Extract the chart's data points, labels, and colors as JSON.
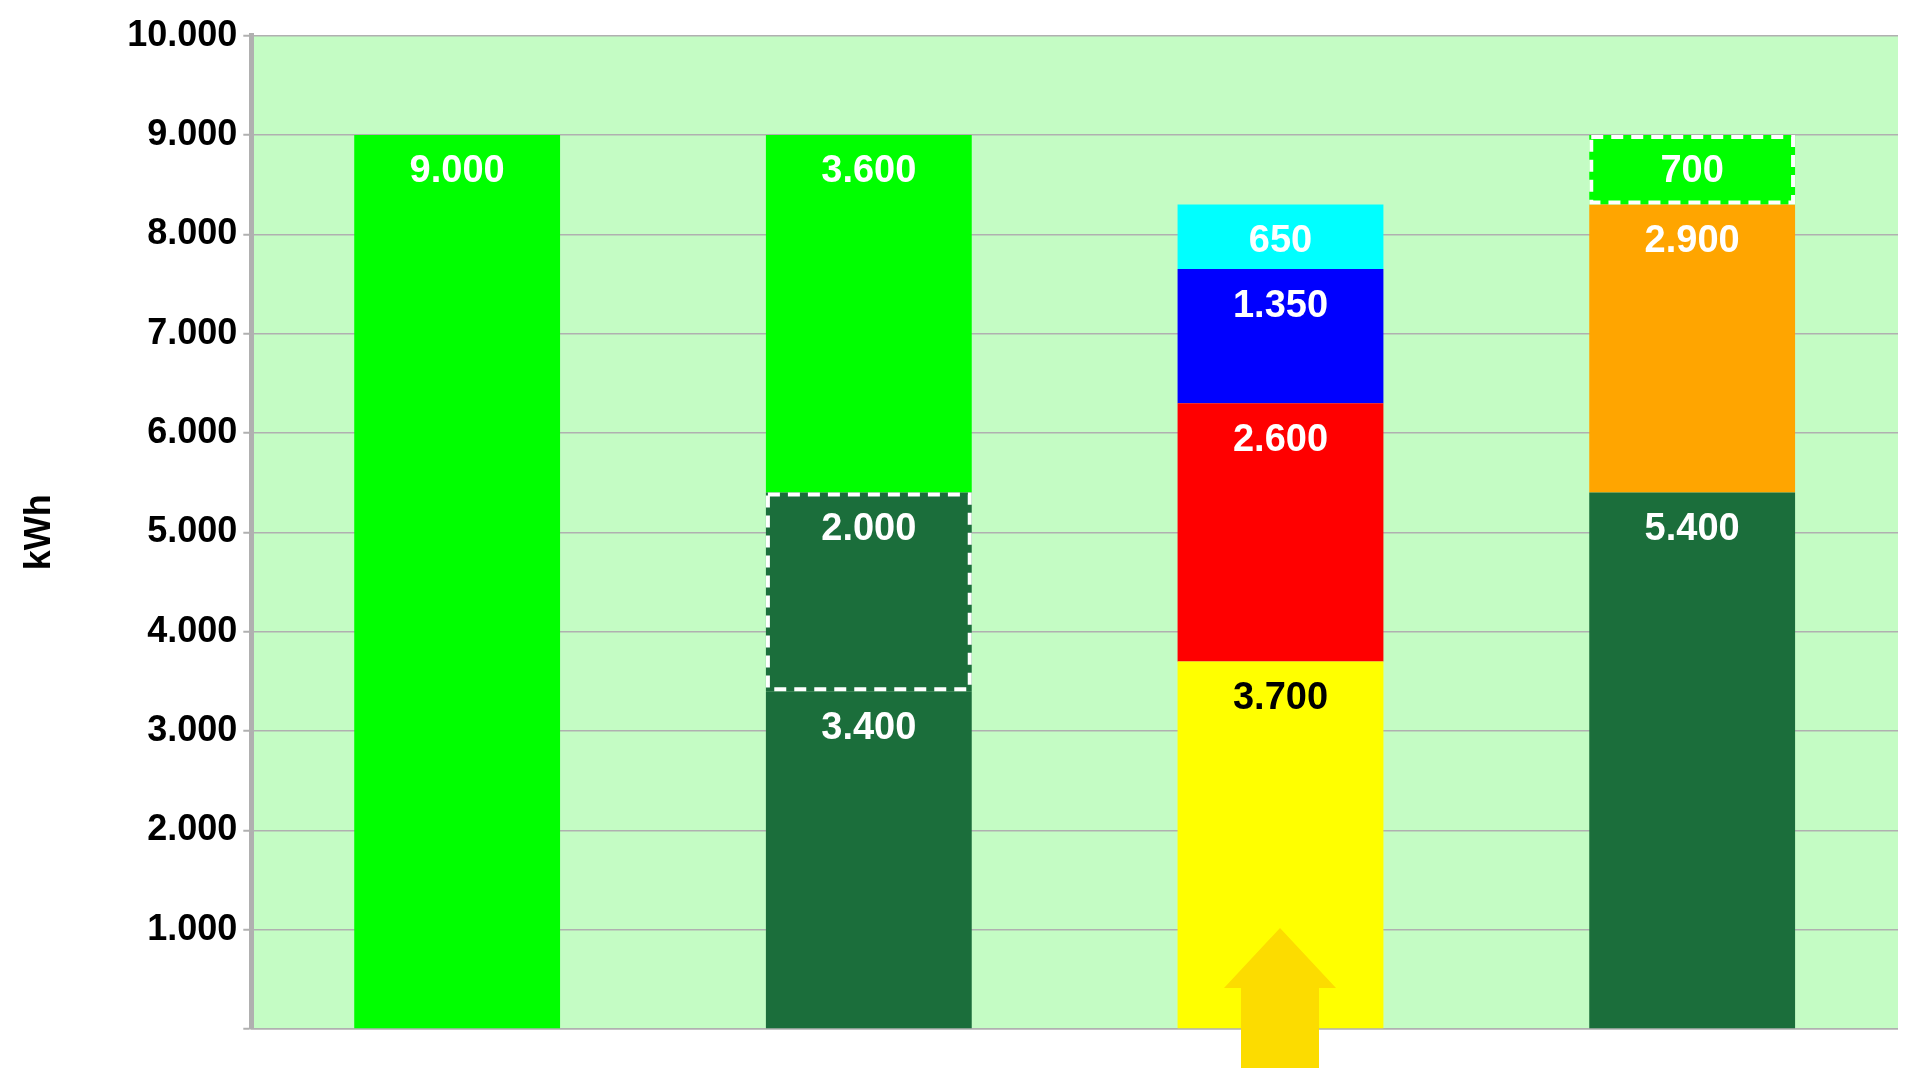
{
  "chart_data": {
    "type": "bar",
    "stacked": true,
    "ylabel": "kWh",
    "categories": [
      null,
      null,
      null,
      null
    ],
    "ylim": [
      0,
      10000
    ],
    "yticks": [
      {
        "value": 0,
        "label": null
      },
      {
        "value": 1000,
        "label": "1.000"
      },
      {
        "value": 2000,
        "label": "2.000"
      },
      {
        "value": 3000,
        "label": "3.000"
      },
      {
        "value": 4000,
        "label": "4.000"
      },
      {
        "value": 5000,
        "label": "5.000"
      },
      {
        "value": 6000,
        "label": "6.000"
      },
      {
        "value": 7000,
        "label": "7.000"
      },
      {
        "value": 8000,
        "label": "8.000"
      },
      {
        "value": 9000,
        "label": "9.000"
      },
      {
        "value": 10000,
        "label": "10.000"
      }
    ],
    "series": [
      {
        "values": [
          9000,
          3400,
          3700,
          5400
        ],
        "colors": [
          "#00ff00",
          "#1b6e3b",
          "#ffff00",
          "#1b6e3b"
        ],
        "value_labels": [
          "9.000",
          "3.400",
          "3.700",
          "5.400"
        ]
      },
      {
        "values": [
          null,
          2000,
          null,
          null
        ],
        "colors": [
          "#1b6e3b",
          "#1b6e3b",
          "#1b6e3b",
          "#1b6e3b"
        ],
        "value_labels": [
          null,
          "2.000",
          null,
          null
        ],
        "line_style": "dashed"
      },
      {
        "values": [
          null,
          3600,
          2600,
          2900
        ],
        "colors": [
          "#00ff00",
          "#00ff00",
          "#ff0000",
          "#ffa500"
        ],
        "value_labels": [
          null,
          "3.600",
          "2.600",
          "2.900"
        ]
      },
      {
        "values": [
          null,
          null,
          1350,
          null
        ],
        "colors": [
          "#0000ff",
          "#0000ff",
          "#0000ff",
          "#0000ff"
        ],
        "value_labels": [
          null,
          null,
          "1.350",
          null
        ]
      },
      {
        "values": [
          null,
          null,
          650,
          null
        ],
        "colors": [
          "#00ffff",
          "#00ffff",
          "#00ffff",
          "#00ffff"
        ],
        "value_labels": [
          null,
          null,
          "650",
          null
        ]
      },
      {
        "values": [
          null,
          null,
          null,
          700
        ],
        "colors": [
          "#00ff00",
          "#00ff00",
          "#00ff00",
          "#00ff00"
        ],
        "value_labels": [
          null,
          null,
          null,
          "700"
        ],
        "line_style": "dashed"
      }
    ],
    "grid": "y",
    "legend": false,
    "tick_labels": "y"
  }
}
